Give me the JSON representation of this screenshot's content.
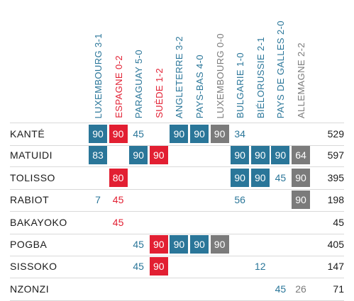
{
  "chart_data": {
    "type": "table",
    "colors": {
      "win": "#2a7699",
      "loss": "#e21f32",
      "draw": "#7b7b7b"
    },
    "matches": [
      {
        "label": "LUXEMBOURG 3-1",
        "result": "win"
      },
      {
        "label": "ESPAGNE 0-2",
        "result": "loss"
      },
      {
        "label": "PARAGUAY 5-0",
        "result": "win"
      },
      {
        "label": "SUÈDE 1-2",
        "result": "loss"
      },
      {
        "label": "ANGLETERRE 3-2",
        "result": "win"
      },
      {
        "label": "PAYS-BAS 4-0",
        "result": "win"
      },
      {
        "label": "LUXEMBOURG 0-0",
        "result": "draw"
      },
      {
        "label": "BULGARIE 1-0",
        "result": "win"
      },
      {
        "label": "BIÉLORUSSIE 2-1",
        "result": "win"
      },
      {
        "label": "PAYS DE GALLES 2-0",
        "result": "win"
      },
      {
        "label": "ALLEMAGNE 2-2",
        "result": "draw"
      }
    ],
    "players": [
      {
        "name": "KANTÉ",
        "minutes": [
          90,
          90,
          45,
          null,
          90,
          90,
          90,
          34,
          null,
          null,
          null
        ],
        "total": 529
      },
      {
        "name": "MATUIDI",
        "minutes": [
          83,
          null,
          90,
          90,
          null,
          null,
          null,
          90,
          90,
          90,
          64
        ],
        "total": 597
      },
      {
        "name": "TOLISSO",
        "minutes": [
          null,
          80,
          null,
          null,
          null,
          null,
          null,
          90,
          90,
          45,
          90
        ],
        "total": 395
      },
      {
        "name": "RABIOT",
        "minutes": [
          7,
          45,
          null,
          null,
          null,
          null,
          null,
          56,
          null,
          null,
          90
        ],
        "total": 198
      },
      {
        "name": "BAKAYOKO",
        "minutes": [
          null,
          45,
          null,
          null,
          null,
          null,
          null,
          null,
          null,
          null,
          null
        ],
        "total": 45
      },
      {
        "name": "POGBA",
        "minutes": [
          null,
          null,
          45,
          90,
          90,
          90,
          90,
          null,
          null,
          null,
          null
        ],
        "total": 405
      },
      {
        "name": "SISSOKO",
        "minutes": [
          null,
          null,
          45,
          90,
          null,
          null,
          null,
          null,
          12,
          null,
          null
        ],
        "total": 147
      },
      {
        "name": "NZONZI",
        "minutes": [
          null,
          null,
          null,
          null,
          null,
          null,
          null,
          null,
          null,
          45,
          26
        ],
        "total": 71
      }
    ]
  }
}
